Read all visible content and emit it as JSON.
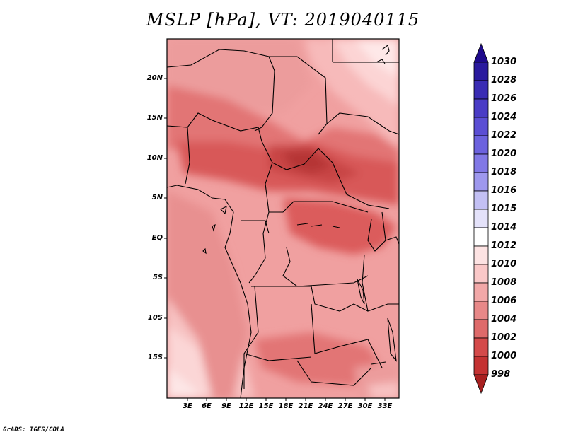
{
  "title": "MSLP [hPa], VT: 2019040115",
  "credit": "GrADS: IGES/COLA",
  "map": {
    "field": "Mean sea level pressure",
    "units": "hPa",
    "region": "Central Africa",
    "lat_ticks": [
      "20N",
      "15N",
      "10N",
      "5N",
      "EQ",
      "5S",
      "10S",
      "15S"
    ],
    "lon_ticks": [
      "3E",
      "6E",
      "9E",
      "12E",
      "15E",
      "18E",
      "21E",
      "24E",
      "27E",
      "30E",
      "33E"
    ]
  },
  "colorbar": {
    "labels": [
      "1030",
      "1028",
      "1026",
      "1024",
      "1022",
      "1020",
      "1018",
      "1016",
      "1015",
      "1014",
      "1012",
      "1010",
      "1008",
      "1006",
      "1004",
      "1002",
      "1000",
      "998"
    ],
    "colors": [
      "#1e0a8c",
      "#2a1a9e",
      "#3a2cb4",
      "#4a3cc6",
      "#5b4ed4",
      "#6c62de",
      "#8178e6",
      "#9e98ee",
      "#c3c0f4",
      "#e4e2fa",
      "#ffffff",
      "#fde3e3",
      "#fac8c8",
      "#f2a8a8",
      "#e88888",
      "#de6a6a",
      "#d44a4a",
      "#c43232",
      "#a82020"
    ]
  },
  "colors": {
    "border": "#000000",
    "accent": "#c43232"
  }
}
